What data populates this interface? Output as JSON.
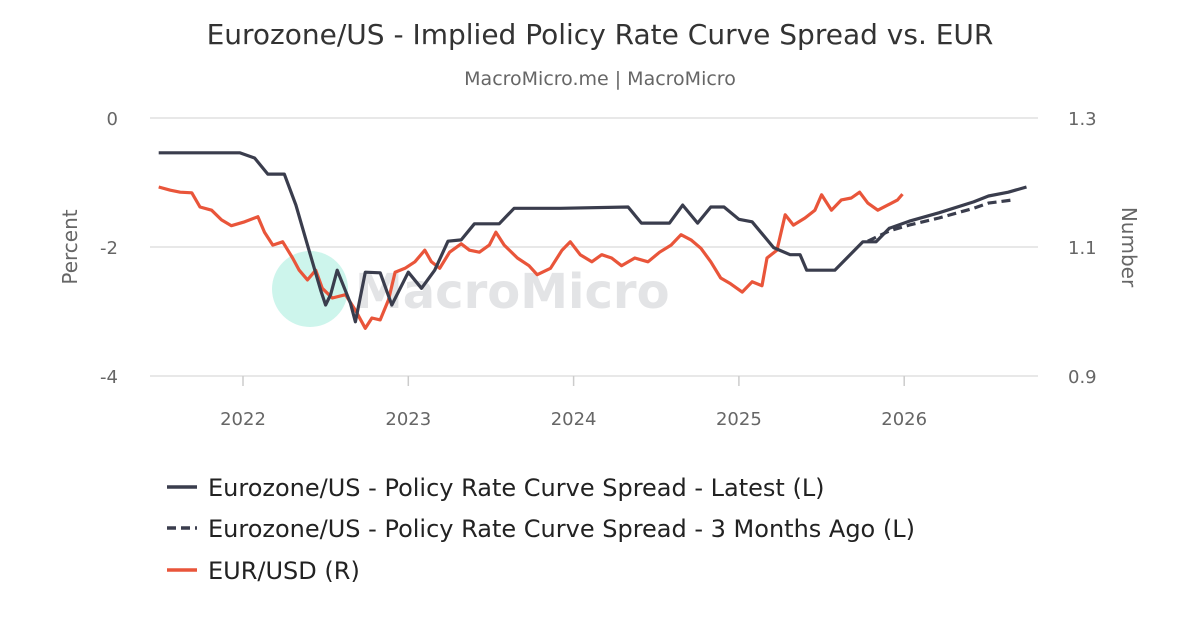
{
  "chart_data": {
    "type": "line",
    "title": "Eurozone/US - Implied Policy Rate Curve Spread vs. EUR",
    "subtitle": "MacroMicro.me | MacroMicro",
    "watermark": "MacroMicro",
    "ylabel_left": "Percent",
    "ylabel_right": "Number",
    "x_ticks": [
      "2022",
      "2023",
      "2024",
      "2025",
      "2026"
    ],
    "xlim": [
      2021.45,
      2026.8
    ],
    "ylim_left": [
      -4,
      0
    ],
    "ylim_right": [
      0.9,
      1.3
    ],
    "y_ticks_left": [
      "0",
      "-2",
      "-4"
    ],
    "y_ticks_right": [
      "1.3",
      "1.1",
      "0.9"
    ],
    "grid": true,
    "legend_position": "bottom",
    "colors": {
      "latest": "#3a3d4d",
      "ago": "#3a3d4d",
      "eurusd": "#e9553a",
      "watermark_circle": "#cdf5ec",
      "watermark_text": "#e3e4e6"
    },
    "series": [
      {
        "name": "Eurozone/US - Policy Rate Curve Spread - Latest (L)",
        "axis": "left",
        "style": "solid",
        "points": [
          [
            2021.49,
            -0.54
          ],
          [
            2021.98,
            -0.54
          ],
          [
            2022.07,
            -0.62
          ],
          [
            2022.15,
            -0.87
          ],
          [
            2022.25,
            -0.87
          ],
          [
            2022.32,
            -1.35
          ],
          [
            2022.39,
            -1.97
          ],
          [
            2022.47,
            -2.67
          ],
          [
            2022.5,
            -2.9
          ],
          [
            2022.53,
            -2.74
          ],
          [
            2022.57,
            -2.36
          ],
          [
            2022.65,
            -2.87
          ],
          [
            2022.68,
            -3.16
          ],
          [
            2022.74,
            -2.39
          ],
          [
            2022.83,
            -2.4
          ],
          [
            2022.9,
            -2.9
          ],
          [
            2023.0,
            -2.39
          ],
          [
            2023.08,
            -2.64
          ],
          [
            2023.16,
            -2.36
          ],
          [
            2023.24,
            -1.91
          ],
          [
            2023.32,
            -1.89
          ],
          [
            2023.4,
            -1.64
          ],
          [
            2023.55,
            -1.64
          ],
          [
            2023.64,
            -1.4
          ],
          [
            2023.92,
            -1.4
          ],
          [
            2024.33,
            -1.38
          ],
          [
            2024.41,
            -1.63
          ],
          [
            2024.58,
            -1.63
          ],
          [
            2024.66,
            -1.35
          ],
          [
            2024.75,
            -1.63
          ],
          [
            2024.83,
            -1.38
          ],
          [
            2024.91,
            -1.38
          ],
          [
            2025.0,
            -1.57
          ],
          [
            2025.08,
            -1.61
          ],
          [
            2025.21,
            -2.01
          ],
          [
            2025.31,
            -2.12
          ],
          [
            2025.37,
            -2.12
          ],
          [
            2025.41,
            -2.36
          ],
          [
            2025.58,
            -2.36
          ],
          [
            2025.75,
            -1.92
          ],
          [
            2025.83,
            -1.92
          ],
          [
            2025.91,
            -1.71
          ],
          [
            2026.03,
            -1.6
          ],
          [
            2026.21,
            -1.47
          ],
          [
            2026.42,
            -1.3
          ],
          [
            2026.51,
            -1.21
          ],
          [
            2026.63,
            -1.15
          ],
          [
            2026.74,
            -1.07
          ]
        ]
      },
      {
        "name": "Eurozone/US - Policy Rate Curve Spread - 3 Months Ago (L)",
        "axis": "left",
        "style": "dashed",
        "points": [
          [
            2025.78,
            -1.91
          ],
          [
            2025.91,
            -1.75
          ],
          [
            2026.03,
            -1.66
          ],
          [
            2026.21,
            -1.55
          ],
          [
            2026.42,
            -1.4
          ],
          [
            2026.51,
            -1.32
          ],
          [
            2026.66,
            -1.27
          ]
        ]
      },
      {
        "name": "EUR/USD (R)",
        "axis": "right",
        "style": "solid",
        "points": [
          [
            2021.49,
            1.193
          ],
          [
            2021.56,
            1.188
          ],
          [
            2021.62,
            1.185
          ],
          [
            2021.69,
            1.184
          ],
          [
            2021.74,
            1.162
          ],
          [
            2021.81,
            1.157
          ],
          [
            2021.87,
            1.142
          ],
          [
            2021.93,
            1.133
          ],
          [
            2022.01,
            1.139
          ],
          [
            2022.09,
            1.147
          ],
          [
            2022.13,
            1.123
          ],
          [
            2022.18,
            1.103
          ],
          [
            2022.24,
            1.108
          ],
          [
            2022.3,
            1.083
          ],
          [
            2022.34,
            1.064
          ],
          [
            2022.39,
            1.049
          ],
          [
            2022.44,
            1.064
          ],
          [
            2022.48,
            1.036
          ],
          [
            2022.54,
            1.021
          ],
          [
            2022.62,
            1.026
          ],
          [
            2022.68,
            1.002
          ],
          [
            2022.74,
            0.974
          ],
          [
            2022.78,
            0.99
          ],
          [
            2022.83,
            0.987
          ],
          [
            2022.88,
            1.018
          ],
          [
            2022.92,
            1.061
          ],
          [
            2022.98,
            1.067
          ],
          [
            2023.04,
            1.077
          ],
          [
            2023.1,
            1.095
          ],
          [
            2023.14,
            1.077
          ],
          [
            2023.19,
            1.067
          ],
          [
            2023.25,
            1.092
          ],
          [
            2023.32,
            1.105
          ],
          [
            2023.37,
            1.095
          ],
          [
            2023.43,
            1.092
          ],
          [
            2023.49,
            1.103
          ],
          [
            2023.53,
            1.123
          ],
          [
            2023.58,
            1.103
          ],
          [
            2023.66,
            1.083
          ],
          [
            2023.73,
            1.071
          ],
          [
            2023.78,
            1.057
          ],
          [
            2023.86,
            1.067
          ],
          [
            2023.93,
            1.095
          ],
          [
            2023.98,
            1.108
          ],
          [
            2024.04,
            1.088
          ],
          [
            2024.11,
            1.077
          ],
          [
            2024.17,
            1.088
          ],
          [
            2024.23,
            1.083
          ],
          [
            2024.29,
            1.071
          ],
          [
            2024.37,
            1.083
          ],
          [
            2024.45,
            1.077
          ],
          [
            2024.52,
            1.092
          ],
          [
            2024.59,
            1.103
          ],
          [
            2024.65,
            1.119
          ],
          [
            2024.71,
            1.111
          ],
          [
            2024.77,
            1.098
          ],
          [
            2024.83,
            1.077
          ],
          [
            2024.89,
            1.052
          ],
          [
            2024.95,
            1.043
          ],
          [
            2025.02,
            1.03
          ],
          [
            2025.08,
            1.046
          ],
          [
            2025.14,
            1.04
          ],
          [
            2025.17,
            1.083
          ],
          [
            2025.23,
            1.095
          ],
          [
            2025.28,
            1.15
          ],
          [
            2025.33,
            1.134
          ],
          [
            2025.4,
            1.145
          ],
          [
            2025.46,
            1.157
          ],
          [
            2025.5,
            1.181
          ],
          [
            2025.56,
            1.157
          ],
          [
            2025.62,
            1.173
          ],
          [
            2025.68,
            1.176
          ],
          [
            2025.73,
            1.185
          ],
          [
            2025.78,
            1.168
          ],
          [
            2025.84,
            1.157
          ],
          [
            2025.9,
            1.165
          ],
          [
            2025.96,
            1.173
          ],
          [
            2025.99,
            1.182
          ]
        ]
      }
    ]
  }
}
